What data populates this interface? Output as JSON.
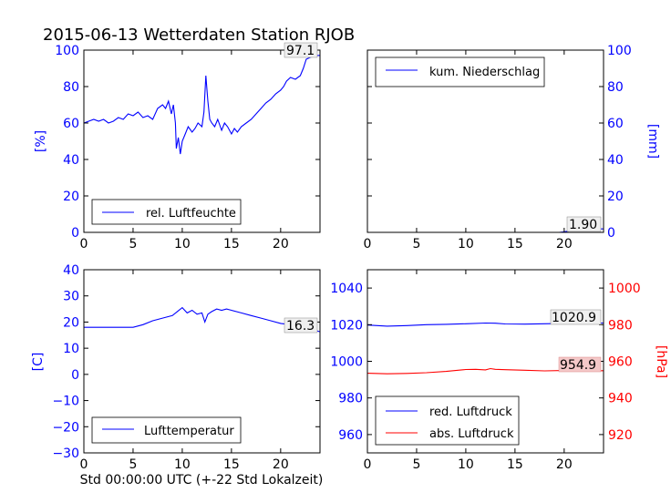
{
  "figure": {
    "title": "2015-06-13 Wetterdaten Station RJOB",
    "xlabel": "Std 00:00:00 UTC (+-22 Std Lokalzeit)"
  },
  "colors": {
    "blue": "#0000ff",
    "red": "#ff0000",
    "annot_red_fill": "#f4c8c8",
    "annot_fill": "#f0f0f0"
  },
  "chart_data": [
    {
      "id": "humidity",
      "type": "line",
      "xlim": [
        0,
        24
      ],
      "ylim": [
        0,
        100
      ],
      "xticks": [
        0,
        5,
        10,
        15,
        20
      ],
      "yticks": [
        0,
        20,
        40,
        60,
        80,
        100
      ],
      "ylabel": "[%]",
      "legend": {
        "placement": "lower-left",
        "entries": [
          "rel. Luftfeuchte"
        ]
      },
      "annotation": "97.1",
      "series": [
        {
          "name": "rel. Luftfeuchte",
          "color": "#0000ff",
          "x": [
            0,
            0.5,
            1,
            1.5,
            2,
            2.5,
            3,
            3.5,
            4,
            4.5,
            5,
            5.5,
            6,
            6.5,
            7,
            7.5,
            8,
            8.3,
            8.6,
            8.9,
            9.1,
            9.3,
            9.4,
            9.6,
            9.8,
            10,
            10.3,
            10.6,
            11,
            11.3,
            11.6,
            12,
            12.2,
            12.4,
            12.6,
            12.8,
            13,
            13.3,
            13.6,
            14,
            14.3,
            14.6,
            15,
            15.3,
            15.6,
            16,
            16.5,
            17,
            17.5,
            18,
            18.5,
            19,
            19.5,
            20,
            20.3,
            20.6,
            21,
            21.5,
            22,
            22.3,
            22.6,
            23,
            23.5,
            24
          ],
          "y": [
            60,
            61,
            62,
            61,
            62,
            60,
            61,
            63,
            62,
            65,
            64,
            66,
            63,
            64,
            62,
            68,
            70,
            68,
            72,
            65,
            70,
            60,
            46,
            52,
            43,
            50,
            54,
            58,
            55,
            57,
            60,
            58,
            66,
            86,
            72,
            62,
            60,
            58,
            62,
            56,
            60,
            58,
            54,
            57,
            55,
            58,
            60,
            62,
            65,
            68,
            71,
            73,
            76,
            78,
            80,
            83,
            85,
            84,
            86,
            90,
            95,
            96,
            97,
            97.1
          ]
        }
      ]
    },
    {
      "id": "precip",
      "type": "line",
      "xlim": [
        0,
        24
      ],
      "ylim": [
        0,
        100
      ],
      "xticks": [
        0,
        5,
        10,
        15,
        20
      ],
      "yticks": [
        0,
        20,
        40,
        60,
        80,
        100
      ],
      "ylabel": "[mm]",
      "legend": {
        "placement": "upper-left",
        "entries": [
          "kum. Niederschlag"
        ]
      },
      "annotation": "1.90",
      "series": [
        {
          "name": "kum. Niederschlag",
          "color": "#0000ff",
          "x": [
            0,
            19.5,
            20,
            20.5,
            21,
            22,
            24
          ],
          "y": [
            0,
            0,
            0.3,
            0.8,
            1.3,
            1.9,
            1.9
          ]
        }
      ]
    },
    {
      "id": "temperature",
      "type": "line",
      "xlim": [
        0,
        24
      ],
      "ylim": [
        -30,
        40
      ],
      "xticks": [
        0,
        5,
        10,
        15,
        20
      ],
      "yticks": [
        -30,
        -20,
        -10,
        0,
        10,
        20,
        30,
        40
      ],
      "ylabel": "[C]",
      "legend": {
        "placement": "lower-left",
        "entries": [
          "Lufttemperatur"
        ]
      },
      "annotation": "16.3",
      "series": [
        {
          "name": "Lufttemperatur",
          "color": "#0000ff",
          "x": [
            0,
            1,
            2,
            3,
            4,
            5,
            6,
            7,
            8,
            9,
            9.5,
            10,
            10.5,
            11,
            11.5,
            12,
            12.3,
            12.6,
            13,
            13.5,
            14,
            14.5,
            15,
            16,
            17,
            18,
            19,
            20,
            21,
            22,
            23,
            24
          ],
          "y": [
            18,
            18,
            18,
            18,
            18,
            18,
            19,
            20.5,
            21.5,
            22.5,
            24,
            25.5,
            23.5,
            24.5,
            23,
            23.5,
            20,
            23,
            24,
            25,
            24.5,
            25,
            24.5,
            23.5,
            22.5,
            21.5,
            20.5,
            19.5,
            19,
            18.5,
            17.5,
            16.3
          ]
        }
      ]
    },
    {
      "id": "pressure",
      "type": "line",
      "xlim": [
        0,
        24
      ],
      "ylim": [
        950,
        1050
      ],
      "y2lim": [
        910,
        1010
      ],
      "xticks": [
        0,
        5,
        10,
        15,
        20
      ],
      "yticks": [
        960,
        980,
        1000,
        1020,
        1040
      ],
      "y2ticks": [
        920,
        940,
        960,
        980,
        1000
      ],
      "ylabel": "",
      "y2label": "[hPa]",
      "legend": {
        "placement": "lower-left",
        "entries": [
          "red. Luftdruck",
          "abs. Luftdruck"
        ]
      },
      "annotations": [
        "1020.9",
        "954.9"
      ],
      "series": [
        {
          "name": "red. Luftdruck",
          "color": "#0000ff",
          "axis": "left",
          "x": [
            0,
            2,
            4,
            6,
            8,
            10,
            12,
            13,
            14,
            16,
            18,
            20,
            22,
            24
          ],
          "y": [
            1019.8,
            1019.2,
            1019.5,
            1020,
            1020.2,
            1020.5,
            1020.9,
            1020.8,
            1020.4,
            1020.3,
            1020.5,
            1020.7,
            1020.9,
            1020.9
          ]
        },
        {
          "name": "abs. Luftdruck",
          "color": "#ff0000",
          "axis": "right",
          "x": [
            0,
            2,
            4,
            6,
            8,
            10,
            11,
            12,
            12.5,
            13,
            14,
            16,
            18,
            20,
            22,
            24
          ],
          "y": [
            953.5,
            953.2,
            953.4,
            953.8,
            954.5,
            955.5,
            955.6,
            955.3,
            956,
            955.6,
            955.4,
            955.1,
            954.8,
            955,
            954.8,
            954.9
          ]
        }
      ]
    }
  ]
}
